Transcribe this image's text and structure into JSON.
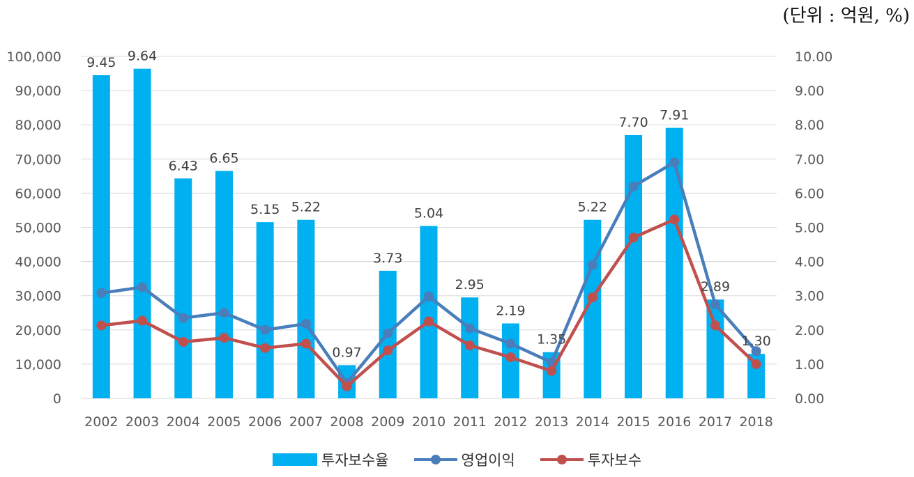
{
  "unit_note": "(단위 : 억원, %)",
  "chart_data": {
    "type": "bar",
    "categories": [
      "2002",
      "2003",
      "2004",
      "2005",
      "2006",
      "2007",
      "2008",
      "2009",
      "2010",
      "2011",
      "2012",
      "2013",
      "2014",
      "2015",
      "2016",
      "2017",
      "2018"
    ],
    "series": [
      {
        "name": "투자보수율",
        "type": "bar",
        "axis": "right",
        "color": "#00B0F0",
        "values": [
          9.45,
          9.64,
          6.43,
          6.65,
          5.15,
          5.22,
          0.97,
          3.73,
          5.04,
          2.95,
          2.19,
          1.35,
          5.22,
          7.7,
          7.91,
          2.89,
          1.3
        ],
        "labels": [
          "9.45",
          "9.64",
          "6.43",
          "6.65",
          "5.15",
          "5.22",
          "0.97",
          "3.73",
          "5.04",
          "2.95",
          "2.19",
          "1.35",
          "5.22",
          "7.70",
          "7.91",
          "2.89",
          "1.30"
        ]
      },
      {
        "name": "영업이익",
        "type": "line",
        "axis": "left",
        "color": "#4A7EBB",
        "values": [
          30800,
          32500,
          23500,
          25000,
          20000,
          21800,
          4500,
          19000,
          29800,
          20500,
          16000,
          10500,
          39000,
          62000,
          69000,
          27500,
          13800
        ]
      },
      {
        "name": "투자보수",
        "type": "line",
        "axis": "left",
        "color": "#C0504D",
        "values": [
          21300,
          22700,
          16500,
          17700,
          14700,
          16000,
          3500,
          14000,
          22500,
          15500,
          12000,
          8000,
          29500,
          47000,
          52300,
          21300,
          10000
        ]
      }
    ],
    "y_left": {
      "min": 0,
      "max": 100000,
      "ticks": [
        "0",
        "10,000",
        "20,000",
        "30,000",
        "40,000",
        "50,000",
        "60,000",
        "70,000",
        "80,000",
        "90,000",
        "100,000"
      ]
    },
    "y_right": {
      "min": 0,
      "max": 10,
      "ticks": [
        "0.00",
        "1.00",
        "2.00",
        "3.00",
        "4.00",
        "5.00",
        "6.00",
        "7.00",
        "8.00",
        "9.00",
        "10.00"
      ]
    },
    "grid": true,
    "legend_position": "bottom"
  },
  "legend": {
    "bar_label": "투자보수율",
    "line1_label": "영업이익",
    "line2_label": "투자보수"
  }
}
